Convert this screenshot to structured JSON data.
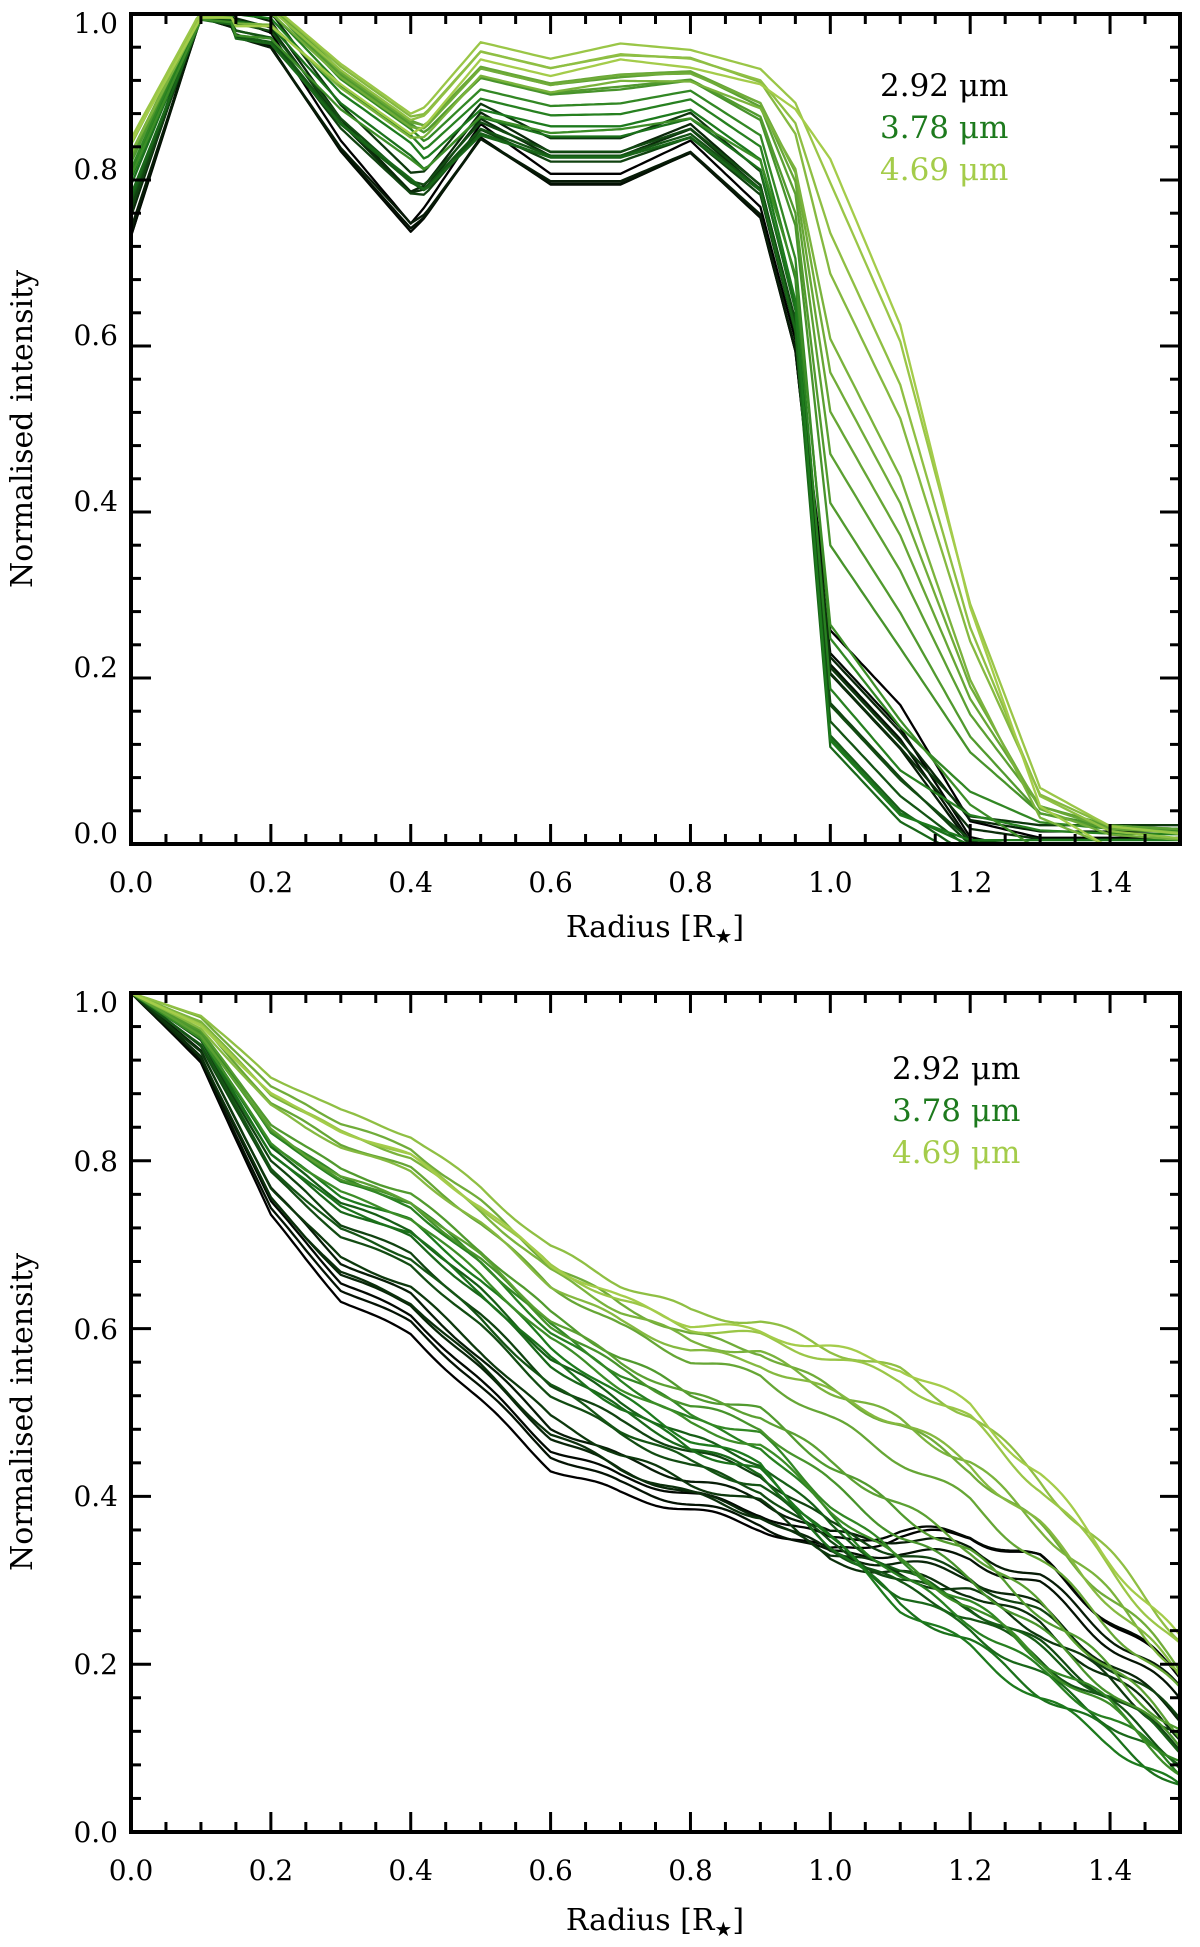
{
  "chart_data": [
    {
      "type": "line",
      "panel": "top",
      "title": "",
      "xlabel": "Radius [R",
      "xlabel_sub": "★",
      "xlabel_close": "]",
      "ylabel": "Normalised intensity",
      "xlim": [
        0.0,
        1.5
      ],
      "ylim": [
        0.0,
        1.0
      ],
      "xticks": [
        "0.0",
        "0.2",
        "0.4",
        "0.6",
        "0.8",
        "1.0",
        "1.2",
        "1.4"
      ],
      "yticks": [
        "0.0",
        "0.2",
        "0.4",
        "0.6",
        "0.8",
        "1.0"
      ],
      "legend_position": "top-right",
      "legend": [
        {
          "label": "2.92 μm",
          "color": "#000000"
        },
        {
          "label": "3.78 μm",
          "color": "#1d7a1d"
        },
        {
          "label": "4.69 μm",
          "color": "#a4cc4a"
        }
      ],
      "n_series": 27,
      "series_start_color": "#000000",
      "series_mid_color": "#1d7a1d",
      "series_end_color": "#a4cc4a",
      "series": [
        {
          "name": "2.92 μm",
          "x": [
            0.0,
            0.1,
            0.2,
            0.3,
            0.4,
            0.42,
            0.5,
            0.6,
            0.7,
            0.8,
            0.9,
            0.95,
            1.0,
            1.1,
            1.2,
            1.3,
            1.4,
            1.5
          ],
          "y": [
            0.73,
            1.0,
            0.97,
            0.84,
            0.74,
            0.76,
            0.86,
            0.8,
            0.8,
            0.84,
            0.76,
            0.6,
            0.25,
            0.16,
            0.02,
            0.0,
            0.0,
            0.0
          ]
        },
        {
          "name": "3.78 μm",
          "x": [
            0.0,
            0.1,
            0.2,
            0.3,
            0.4,
            0.42,
            0.5,
            0.6,
            0.7,
            0.8,
            0.9,
            0.95,
            1.0,
            1.1,
            1.2,
            1.3,
            1.4,
            1.5
          ],
          "y": [
            0.8,
            1.0,
            0.99,
            0.9,
            0.84,
            0.82,
            0.88,
            0.86,
            0.86,
            0.88,
            0.82,
            0.65,
            0.12,
            0.03,
            0.0,
            0.0,
            0.0,
            0.0
          ]
        },
        {
          "name": "4.69 μm",
          "x": [
            0.0,
            0.1,
            0.2,
            0.3,
            0.4,
            0.42,
            0.5,
            0.6,
            0.7,
            0.8,
            0.9,
            0.95,
            1.0,
            1.1,
            1.2,
            1.3,
            1.4,
            1.5
          ],
          "y": [
            0.85,
            1.0,
            1.0,
            0.93,
            0.87,
            0.88,
            0.96,
            0.94,
            0.96,
            0.95,
            0.93,
            0.9,
            0.84,
            0.64,
            0.3,
            0.06,
            0.01,
            0.0
          ]
        }
      ]
    },
    {
      "type": "line",
      "panel": "bottom",
      "title": "",
      "xlabel": "Radius [R",
      "xlabel_sub": "★",
      "xlabel_close": "]",
      "ylabel": "Normalised intensity",
      "xlim": [
        0.0,
        1.5
      ],
      "ylim": [
        0.0,
        1.0
      ],
      "xticks": [
        "0.0",
        "0.2",
        "0.4",
        "0.6",
        "0.8",
        "1.0",
        "1.2",
        "1.4"
      ],
      "yticks": [
        "0.0",
        "0.2",
        "0.4",
        "0.6",
        "0.8",
        "1.0"
      ],
      "legend_position": "top-right",
      "legend": [
        {
          "label": "2.92 μm",
          "color": "#000000"
        },
        {
          "label": "3.78 μm",
          "color": "#1d7a1d"
        },
        {
          "label": "4.69 μm",
          "color": "#a4cc4a"
        }
      ],
      "n_series": 27,
      "series_start_color": "#000000",
      "series_mid_color": "#1d7a1d",
      "series_end_color": "#a4cc4a",
      "series": [
        {
          "name": "2.92 μm",
          "x": [
            0.0,
            0.1,
            0.2,
            0.3,
            0.4,
            0.5,
            0.6,
            0.7,
            0.8,
            0.9,
            1.0,
            1.1,
            1.2,
            1.3,
            1.4,
            1.5
          ],
          "y": [
            1.0,
            0.92,
            0.74,
            0.64,
            0.6,
            0.52,
            0.44,
            0.41,
            0.39,
            0.37,
            0.34,
            0.36,
            0.36,
            0.33,
            0.26,
            0.19
          ]
        },
        {
          "name": "3.78 μm",
          "x": [
            0.0,
            0.1,
            0.2,
            0.3,
            0.4,
            0.5,
            0.6,
            0.7,
            0.8,
            0.9,
            1.0,
            1.1,
            1.2,
            1.3,
            1.4,
            1.5
          ],
          "y": [
            1.0,
            0.95,
            0.82,
            0.76,
            0.73,
            0.66,
            0.58,
            0.52,
            0.47,
            0.44,
            0.35,
            0.27,
            0.22,
            0.16,
            0.11,
            0.05
          ]
        },
        {
          "name": "4.69 μm",
          "x": [
            0.0,
            0.1,
            0.2,
            0.3,
            0.4,
            0.5,
            0.6,
            0.7,
            0.8,
            0.9,
            1.0,
            1.1,
            1.2,
            1.3,
            1.4,
            1.5
          ],
          "y": [
            1.0,
            0.97,
            0.9,
            0.86,
            0.83,
            0.77,
            0.7,
            0.66,
            0.63,
            0.62,
            0.6,
            0.58,
            0.53,
            0.45,
            0.35,
            0.25
          ]
        }
      ]
    }
  ]
}
